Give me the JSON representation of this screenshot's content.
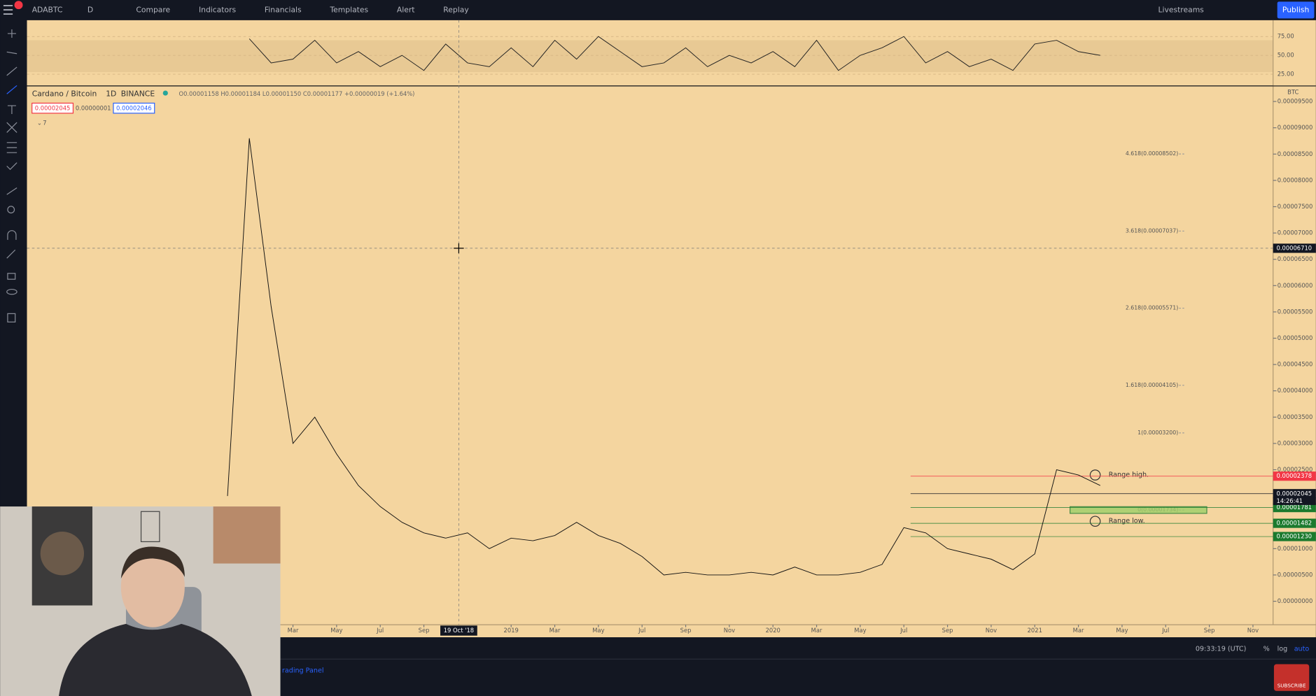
{
  "toolbar": {
    "symbol": "ADABTC",
    "interval": "D",
    "items": [
      "Compare",
      "Indicators",
      "Financials",
      "Templates",
      "Alert",
      "Replay"
    ],
    "livestreams": "Livestreams",
    "publish": "Publish"
  },
  "legend": {
    "title": "Cardano / Bitcoin",
    "interval": "1D",
    "exchange": "BINANCE",
    "ohlc": "O0.00001158 H0.00001184 L0.00001150 C0.00001177 +0.00000019 (+1.64%)",
    "sell": "0.00002045",
    "spread": "0.00000001",
    "buy": "0.00002046",
    "indicators_count": "7"
  },
  "chart": {
    "type": "line",
    "currency": "BTC",
    "color": "#111111",
    "x": [
      "2017-12",
      "2018-01",
      "2018-02",
      "2018-03",
      "2018-04",
      "2018-05",
      "2018-06",
      "2018-07",
      "2018-08",
      "2018-09",
      "2018-10",
      "2018-11",
      "2018-12",
      "2019-01",
      "2019-02",
      "2019-03",
      "2019-04",
      "2019-05",
      "2019-06",
      "2019-07",
      "2019-08",
      "2019-09",
      "2019-10",
      "2019-11",
      "2019-12",
      "2020-01",
      "2020-02",
      "2020-03",
      "2020-04",
      "2020-05",
      "2020-06",
      "2020-07",
      "2020-08",
      "2020-09",
      "2020-10",
      "2020-11",
      "2020-12",
      "2021-01",
      "2021-02",
      "2021-03",
      "2021-04"
    ],
    "values": [
      2e-05,
      8.8e-05,
      5.6e-05,
      3e-05,
      3.5e-05,
      2.8e-05,
      2.2e-05,
      1.8e-05,
      1.5e-05,
      1.3e-05,
      1.2e-05,
      1.3e-05,
      1e-05,
      1.2e-05,
      1.15e-05,
      1.25e-05,
      1.5e-05,
      1.25e-05,
      1.1e-05,
      8.5e-06,
      5e-06,
      5.5e-06,
      5e-06,
      5e-06,
      5.5e-06,
      5e-06,
      6.5e-06,
      5e-06,
      5e-06,
      5.5e-06,
      7e-06,
      1.4e-05,
      1.3e-05,
      1e-05,
      9e-06,
      8e-06,
      6e-06,
      9e-06,
      2.5e-05,
      2.4e-05,
      2.2e-05
    ],
    "ylim": [
      -4.46e-06,
      9.787e-05
    ],
    "yticks": [
      {
        "value": 9.5e-05,
        "label": "0.00009500"
      },
      {
        "value": 9e-05,
        "label": "0.00009000"
      },
      {
        "value": 8.5e-05,
        "label": "0.00008500"
      },
      {
        "value": 8e-05,
        "label": "0.00008000"
      },
      {
        "value": 7.5e-05,
        "label": "0.00007500"
      },
      {
        "value": 7e-05,
        "label": "0.00007000"
      },
      {
        "value": 6.5e-05,
        "label": "0.00006500"
      },
      {
        "value": 6e-05,
        "label": "0.00006000"
      },
      {
        "value": 5.5e-05,
        "label": "0.00005500"
      },
      {
        "value": 5e-05,
        "label": "0.00005000"
      },
      {
        "value": 4.5e-05,
        "label": "0.00004500"
      },
      {
        "value": 4e-05,
        "label": "0.00004000"
      },
      {
        "value": 3.5e-05,
        "label": "0.00003500"
      },
      {
        "value": 3e-05,
        "label": "0.00003000"
      },
      {
        "value": 2.5e-05,
        "label": "0.00002500"
      },
      {
        "value": 1e-05,
        "label": "0.00001000"
      },
      {
        "value": 5e-06,
        "label": "0.00000500"
      },
      {
        "value": 0,
        "label": "0.00000000"
      }
    ],
    "xticks": [
      {
        "value": "2018-03",
        "label": "Mar"
      },
      {
        "value": "2018-05",
        "label": "May"
      },
      {
        "value": "2018-07",
        "label": "Jul"
      },
      {
        "value": "2018-09",
        "label": "Sep"
      },
      {
        "value": "2019-01",
        "label": "2019"
      },
      {
        "value": "2019-03",
        "label": "Mar"
      },
      {
        "value": "2019-05",
        "label": "May"
      },
      {
        "value": "2019-07",
        "label": "Jul"
      },
      {
        "value": "2019-09",
        "label": "Sep"
      },
      {
        "value": "2019-11",
        "label": "Nov"
      },
      {
        "value": "2020-01",
        "label": "2020"
      },
      {
        "value": "2020-03",
        "label": "Mar"
      },
      {
        "value": "2020-05",
        "label": "May"
      },
      {
        "value": "2020-07",
        "label": "Jul"
      },
      {
        "value": "2020-09",
        "label": "Sep"
      },
      {
        "value": "2020-11",
        "label": "Nov"
      },
      {
        "value": "2021-01",
        "label": "2021"
      },
      {
        "value": "2021-03",
        "label": "Mar"
      },
      {
        "value": "2021-05",
        "label": "May"
      },
      {
        "value": "2021-07",
        "label": "Jul"
      },
      {
        "value": "2021-09",
        "label": "Sep"
      },
      {
        "value": "2021-11",
        "label": "Nov"
      }
    ],
    "crosshair": {
      "x": {
        "value": "2018-10-19",
        "label": "19 Oct '18"
      },
      "y": {
        "value": 6.71e-05,
        "label": "0.00006710"
      }
    },
    "fib_levels": [
      {
        "value": 8.502e-05,
        "label": "4.618(0.00008502)"
      },
      {
        "value": 7.037e-05,
        "label": "3.618(0.00007037)"
      },
      {
        "value": 5.571e-05,
        "label": "2.618(0.00005571)"
      },
      {
        "value": 4.105e-05,
        "label": "1.618(0.00004105)"
      },
      {
        "value": 3.2e-05,
        "label": "1(0.00003200)"
      },
      {
        "value": 1.734e-05,
        "label": "0(0.00001734)"
      }
    ],
    "annotations": [
      {
        "value": 2.4e-05,
        "label": "Range high."
      },
      {
        "value": 1.52e-05,
        "label": "Range low."
      }
    ],
    "price_labels": [
      {
        "value": 2.378e-05,
        "label": "0.00002378",
        "color": "#f23645"
      },
      {
        "value": 2.045e-05,
        "label": "0.00002045",
        "color": "#131722"
      },
      {
        "value": 1.781e-05,
        "label": "0.00001781",
        "color": "#1b7a2e"
      },
      {
        "value": 1.482e-05,
        "label": "0.00001482",
        "color": "#1b7a2e"
      },
      {
        "value": 1.23e-05,
        "label": "0.00001230",
        "color": "#1b7a2e"
      }
    ],
    "countdown": "14:26:41"
  },
  "rsi": {
    "type": "line",
    "x": [
      "2018-01",
      "2018-02",
      "2018-03",
      "2018-04",
      "2018-05",
      "2018-06",
      "2018-07",
      "2018-08",
      "2018-09",
      "2018-10",
      "2018-11",
      "2018-12",
      "2019-01",
      "2019-02",
      "2019-03",
      "2019-04",
      "2019-05",
      "2019-06",
      "2019-07",
      "2019-08",
      "2019-09",
      "2019-10",
      "2019-11",
      "2019-12",
      "2020-01",
      "2020-02",
      "2020-03",
      "2020-04",
      "2020-05",
      "2020-06",
      "2020-07",
      "2020-08",
      "2020-09",
      "2020-10",
      "2020-11",
      "2020-12",
      "2021-01",
      "2021-02",
      "2021-03",
      "2021-04"
    ],
    "values": [
      72,
      40,
      45,
      70,
      40,
      55,
      35,
      50,
      30,
      65,
      40,
      35,
      60,
      35,
      70,
      45,
      75,
      55,
      35,
      40,
      60,
      35,
      50,
      40,
      55,
      35,
      70,
      30,
      50,
      60,
      75,
      40,
      55,
      35,
      45,
      30,
      65,
      70,
      55,
      50
    ],
    "ylim": [
      10,
      96.7
    ],
    "yticks": [
      {
        "value": 75,
        "label": "75.00"
      },
      {
        "value": 50,
        "label": "50.00"
      },
      {
        "value": 25,
        "label": "25.00"
      }
    ]
  },
  "status": {
    "time": "09:33:19 (UTC)",
    "percent": "%",
    "log": "log",
    "auto": "auto"
  },
  "bottom_panel": {
    "tab": "rading Panel"
  },
  "overlay": {
    "subscribe": "SUBSCRIBE"
  }
}
